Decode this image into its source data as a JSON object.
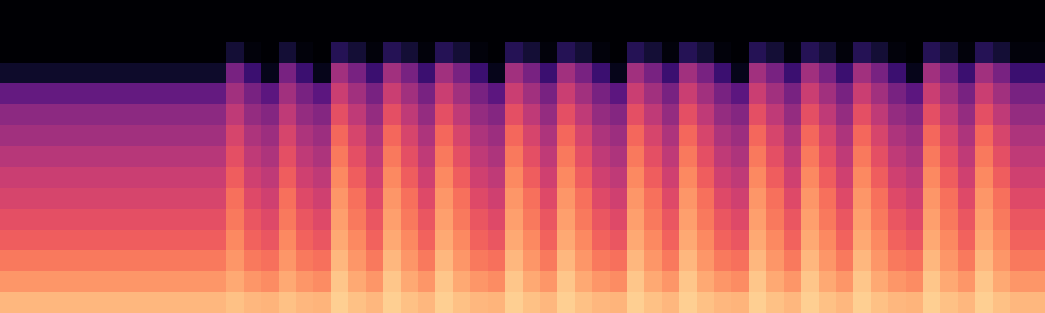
{
  "chart_data": {
    "type": "heatmap",
    "tick_labels": false,
    "zlim": [
      0,
      1
    ],
    "cells": [
      [
        0,
        0,
        0,
        0,
        0,
        0,
        0,
        0,
        0,
        0,
        0,
        0,
        0,
        0,
        0,
        0,
        0,
        0,
        0,
        0,
        0,
        0,
        0,
        0,
        0,
        0,
        0,
        0,
        0,
        0,
        0,
        0,
        0,
        0,
        0,
        0,
        0,
        0,
        0,
        0,
        0,
        0,
        0,
        0,
        0,
        0,
        0,
        0,
        0,
        0,
        0,
        0,
        0,
        0,
        0,
        0,
        0,
        0,
        0,
        0
      ],
      [
        0,
        0,
        0,
        0,
        0,
        0,
        0,
        0,
        0,
        0,
        0,
        0,
        0,
        0,
        0,
        0,
        0,
        0,
        0,
        0,
        0,
        0,
        0,
        0,
        0,
        0,
        0,
        0,
        0,
        0,
        0,
        0,
        0,
        0,
        0,
        0,
        0,
        0,
        0,
        0,
        0,
        0,
        0,
        0,
        0,
        0,
        0,
        0,
        0,
        0,
        0,
        0,
        0,
        0,
        0,
        0,
        0,
        0,
        0,
        0
      ],
      [
        0,
        0,
        0,
        0,
        0,
        0,
        0,
        0,
        0,
        0,
        0,
        0,
        0,
        0.1,
        0.02,
        0,
        0.1,
        0.02,
        0,
        0.15,
        0.1,
        0.02,
        0.15,
        0.1,
        0.02,
        0.15,
        0.1,
        0.02,
        0,
        0.15,
        0.1,
        0.02,
        0.15,
        0.1,
        0.02,
        0,
        0.15,
        0.1,
        0.02,
        0.15,
        0.1,
        0.02,
        0,
        0.15,
        0.1,
        0.02,
        0.15,
        0.1,
        0.02,
        0.15,
        0.1,
        0.02,
        0,
        0.15,
        0.1,
        0.02,
        0.15,
        0.1,
        0.02,
        0.02
      ],
      [
        0.08,
        0.08,
        0.08,
        0.08,
        0.08,
        0.08,
        0.08,
        0.08,
        0.08,
        0.08,
        0.08,
        0.08,
        0.08,
        0.35,
        0.2,
        0.05,
        0.35,
        0.2,
        0.05,
        0.45,
        0.35,
        0.2,
        0.45,
        0.35,
        0.2,
        0.45,
        0.35,
        0.2,
        0.05,
        0.45,
        0.35,
        0.2,
        0.45,
        0.35,
        0.2,
        0.05,
        0.45,
        0.35,
        0.2,
        0.45,
        0.35,
        0.2,
        0.05,
        0.45,
        0.35,
        0.2,
        0.45,
        0.35,
        0.2,
        0.45,
        0.35,
        0.2,
        0.05,
        0.45,
        0.35,
        0.2,
        0.45,
        0.35,
        0.2,
        0.2
      ],
      [
        0.3,
        0.3,
        0.3,
        0.3,
        0.3,
        0.3,
        0.3,
        0.3,
        0.3,
        0.3,
        0.3,
        0.3,
        0.3,
        0.45,
        0.35,
        0.28,
        0.45,
        0.35,
        0.28,
        0.55,
        0.45,
        0.35,
        0.55,
        0.45,
        0.35,
        0.55,
        0.45,
        0.35,
        0.28,
        0.55,
        0.45,
        0.35,
        0.55,
        0.45,
        0.35,
        0.28,
        0.55,
        0.45,
        0.35,
        0.55,
        0.45,
        0.35,
        0.28,
        0.55,
        0.45,
        0.35,
        0.55,
        0.45,
        0.35,
        0.55,
        0.45,
        0.35,
        0.28,
        0.55,
        0.45,
        0.35,
        0.55,
        0.45,
        0.35,
        0.35
      ],
      [
        0.4,
        0.4,
        0.4,
        0.4,
        0.4,
        0.4,
        0.4,
        0.4,
        0.4,
        0.4,
        0.4,
        0.4,
        0.4,
        0.52,
        0.42,
        0.38,
        0.52,
        0.42,
        0.38,
        0.62,
        0.52,
        0.42,
        0.62,
        0.52,
        0.42,
        0.62,
        0.52,
        0.42,
        0.38,
        0.62,
        0.52,
        0.42,
        0.62,
        0.52,
        0.42,
        0.38,
        0.62,
        0.52,
        0.42,
        0.62,
        0.52,
        0.42,
        0.38,
        0.62,
        0.52,
        0.42,
        0.62,
        0.52,
        0.42,
        0.62,
        0.52,
        0.42,
        0.38,
        0.62,
        0.52,
        0.42,
        0.62,
        0.52,
        0.42,
        0.42
      ],
      [
        0.45,
        0.45,
        0.45,
        0.45,
        0.45,
        0.45,
        0.45,
        0.45,
        0.45,
        0.45,
        0.45,
        0.45,
        0.45,
        0.58,
        0.48,
        0.44,
        0.58,
        0.48,
        0.44,
        0.68,
        0.58,
        0.48,
        0.68,
        0.58,
        0.48,
        0.68,
        0.58,
        0.48,
        0.44,
        0.68,
        0.58,
        0.48,
        0.68,
        0.58,
        0.48,
        0.44,
        0.68,
        0.58,
        0.48,
        0.68,
        0.58,
        0.48,
        0.44,
        0.68,
        0.58,
        0.48,
        0.68,
        0.58,
        0.48,
        0.68,
        0.58,
        0.48,
        0.44,
        0.68,
        0.58,
        0.48,
        0.68,
        0.58,
        0.48,
        0.48
      ],
      [
        0.5,
        0.5,
        0.5,
        0.5,
        0.5,
        0.5,
        0.5,
        0.5,
        0.5,
        0.5,
        0.5,
        0.5,
        0.5,
        0.62,
        0.52,
        0.48,
        0.62,
        0.52,
        0.48,
        0.72,
        0.62,
        0.52,
        0.72,
        0.62,
        0.52,
        0.72,
        0.62,
        0.52,
        0.48,
        0.72,
        0.62,
        0.52,
        0.72,
        0.62,
        0.52,
        0.48,
        0.72,
        0.62,
        0.52,
        0.72,
        0.62,
        0.52,
        0.48,
        0.72,
        0.62,
        0.52,
        0.72,
        0.62,
        0.52,
        0.72,
        0.62,
        0.52,
        0.48,
        0.72,
        0.62,
        0.52,
        0.72,
        0.62,
        0.52,
        0.52
      ],
      [
        0.55,
        0.55,
        0.55,
        0.55,
        0.55,
        0.55,
        0.55,
        0.55,
        0.55,
        0.55,
        0.55,
        0.55,
        0.55,
        0.66,
        0.56,
        0.52,
        0.66,
        0.56,
        0.52,
        0.75,
        0.66,
        0.56,
        0.75,
        0.66,
        0.56,
        0.75,
        0.66,
        0.56,
        0.52,
        0.75,
        0.66,
        0.56,
        0.75,
        0.66,
        0.56,
        0.52,
        0.75,
        0.66,
        0.56,
        0.75,
        0.66,
        0.56,
        0.52,
        0.75,
        0.66,
        0.56,
        0.75,
        0.66,
        0.56,
        0.75,
        0.66,
        0.56,
        0.52,
        0.75,
        0.66,
        0.56,
        0.75,
        0.66,
        0.56,
        0.56
      ],
      [
        0.58,
        0.58,
        0.58,
        0.58,
        0.58,
        0.58,
        0.58,
        0.58,
        0.58,
        0.58,
        0.58,
        0.58,
        0.58,
        0.7,
        0.6,
        0.56,
        0.7,
        0.6,
        0.56,
        0.78,
        0.7,
        0.6,
        0.78,
        0.7,
        0.6,
        0.78,
        0.7,
        0.6,
        0.56,
        0.78,
        0.7,
        0.6,
        0.78,
        0.7,
        0.6,
        0.56,
        0.78,
        0.7,
        0.6,
        0.78,
        0.7,
        0.6,
        0.56,
        0.78,
        0.7,
        0.6,
        0.78,
        0.7,
        0.6,
        0.78,
        0.7,
        0.6,
        0.56,
        0.78,
        0.7,
        0.6,
        0.78,
        0.7,
        0.6,
        0.6
      ],
      [
        0.62,
        0.62,
        0.62,
        0.62,
        0.62,
        0.62,
        0.62,
        0.62,
        0.62,
        0.62,
        0.62,
        0.62,
        0.62,
        0.72,
        0.64,
        0.6,
        0.72,
        0.64,
        0.6,
        0.8,
        0.72,
        0.64,
        0.8,
        0.72,
        0.64,
        0.8,
        0.72,
        0.64,
        0.6,
        0.8,
        0.72,
        0.64,
        0.8,
        0.72,
        0.64,
        0.6,
        0.8,
        0.72,
        0.64,
        0.8,
        0.72,
        0.64,
        0.6,
        0.8,
        0.72,
        0.64,
        0.8,
        0.72,
        0.64,
        0.8,
        0.72,
        0.64,
        0.6,
        0.8,
        0.72,
        0.64,
        0.8,
        0.72,
        0.64,
        0.64
      ],
      [
        0.66,
        0.66,
        0.66,
        0.66,
        0.66,
        0.66,
        0.66,
        0.66,
        0.66,
        0.66,
        0.66,
        0.66,
        0.66,
        0.75,
        0.67,
        0.64,
        0.75,
        0.67,
        0.64,
        0.82,
        0.75,
        0.67,
        0.82,
        0.75,
        0.67,
        0.82,
        0.75,
        0.67,
        0.64,
        0.82,
        0.75,
        0.67,
        0.82,
        0.75,
        0.67,
        0.64,
        0.82,
        0.75,
        0.67,
        0.82,
        0.75,
        0.67,
        0.64,
        0.82,
        0.75,
        0.67,
        0.82,
        0.75,
        0.67,
        0.82,
        0.75,
        0.67,
        0.64,
        0.82,
        0.75,
        0.67,
        0.82,
        0.75,
        0.67,
        0.67
      ],
      [
        0.72,
        0.72,
        0.72,
        0.72,
        0.72,
        0.72,
        0.72,
        0.72,
        0.72,
        0.72,
        0.72,
        0.72,
        0.72,
        0.78,
        0.72,
        0.7,
        0.78,
        0.72,
        0.7,
        0.85,
        0.78,
        0.72,
        0.85,
        0.78,
        0.72,
        0.85,
        0.78,
        0.72,
        0.7,
        0.85,
        0.78,
        0.72,
        0.85,
        0.78,
        0.72,
        0.7,
        0.85,
        0.78,
        0.72,
        0.85,
        0.78,
        0.72,
        0.7,
        0.85,
        0.78,
        0.72,
        0.85,
        0.78,
        0.72,
        0.85,
        0.78,
        0.72,
        0.7,
        0.85,
        0.78,
        0.72,
        0.85,
        0.78,
        0.72,
        0.72
      ],
      [
        0.78,
        0.78,
        0.78,
        0.78,
        0.78,
        0.78,
        0.78,
        0.78,
        0.78,
        0.78,
        0.78,
        0.78,
        0.78,
        0.82,
        0.78,
        0.76,
        0.82,
        0.78,
        0.76,
        0.88,
        0.82,
        0.78,
        0.88,
        0.82,
        0.78,
        0.88,
        0.82,
        0.78,
        0.76,
        0.88,
        0.82,
        0.78,
        0.88,
        0.82,
        0.78,
        0.76,
        0.88,
        0.82,
        0.78,
        0.88,
        0.82,
        0.78,
        0.76,
        0.88,
        0.82,
        0.78,
        0.88,
        0.82,
        0.78,
        0.88,
        0.82,
        0.78,
        0.76,
        0.88,
        0.82,
        0.78,
        0.88,
        0.82,
        0.78,
        0.78
      ],
      [
        0.85,
        0.85,
        0.85,
        0.85,
        0.85,
        0.85,
        0.85,
        0.85,
        0.85,
        0.85,
        0.85,
        0.85,
        0.85,
        0.87,
        0.85,
        0.84,
        0.87,
        0.85,
        0.84,
        0.9,
        0.87,
        0.85,
        0.9,
        0.87,
        0.85,
        0.9,
        0.87,
        0.85,
        0.84,
        0.9,
        0.87,
        0.85,
        0.9,
        0.87,
        0.85,
        0.84,
        0.9,
        0.87,
        0.85,
        0.9,
        0.87,
        0.85,
        0.84,
        0.9,
        0.87,
        0.85,
        0.9,
        0.87,
        0.85,
        0.9,
        0.87,
        0.85,
        0.84,
        0.9,
        0.87,
        0.85,
        0.9,
        0.87,
        0.85,
        0.85
      ]
    ]
  }
}
